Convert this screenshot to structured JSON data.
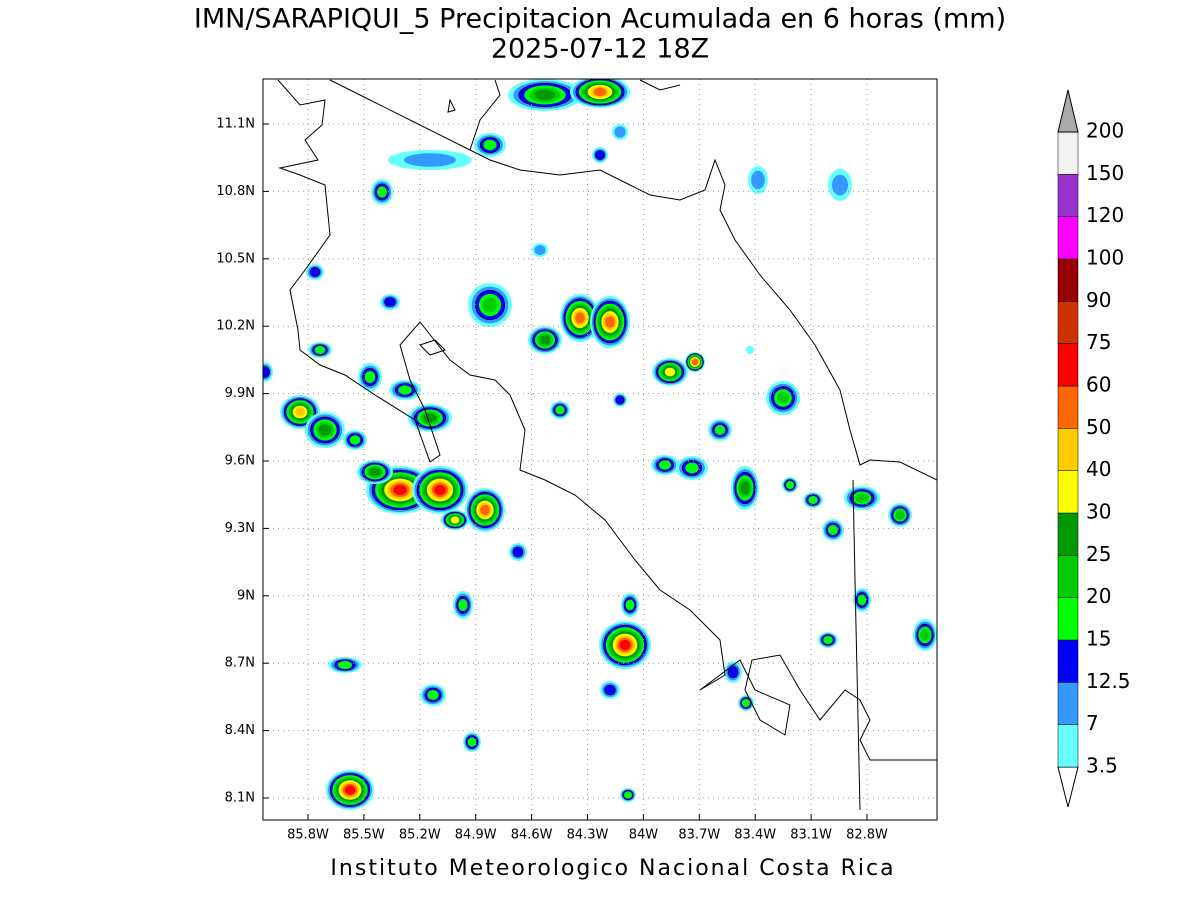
{
  "title": "IMN/SARAPIQUI_5 Precipitacion Acumulada en 6 horas (mm)",
  "subtitle": "2025-07-12 18Z",
  "map": {
    "lon_ticks": [
      "85.8W",
      "85.5W",
      "85.2W",
      "84.9W",
      "84.6W",
      "84.3W",
      "84W",
      "83.7W",
      "83.4W",
      "83.1W",
      "82.8W"
    ],
    "lat_ticks": [
      "11.1N",
      "10.8N",
      "10.5N",
      "10.2N",
      "9.9N",
      "9.6N",
      "9.3N",
      "9N",
      "8.7N",
      "8.4N",
      "8.1N"
    ],
    "grid": true
  },
  "colorbar": {
    "levels": [
      3.5,
      7,
      12.5,
      15,
      20,
      25,
      30,
      40,
      50,
      60,
      75,
      90,
      100,
      120,
      150,
      200
    ],
    "colors": [
      "#ffffff",
      "#66ffff",
      "#3399ff",
      "#0000ff",
      "#00ff00",
      "#00cc00",
      "#009900",
      "#ffff00",
      "#ffcc00",
      "#ff6600",
      "#ff0000",
      "#cc3300",
      "#990000",
      "#ff00ff",
      "#9933cc",
      "#f2f2f2",
      "#aaaaaa"
    ]
  },
  "footer": "Instituto Meteorologico Nacional Costa Rica"
}
